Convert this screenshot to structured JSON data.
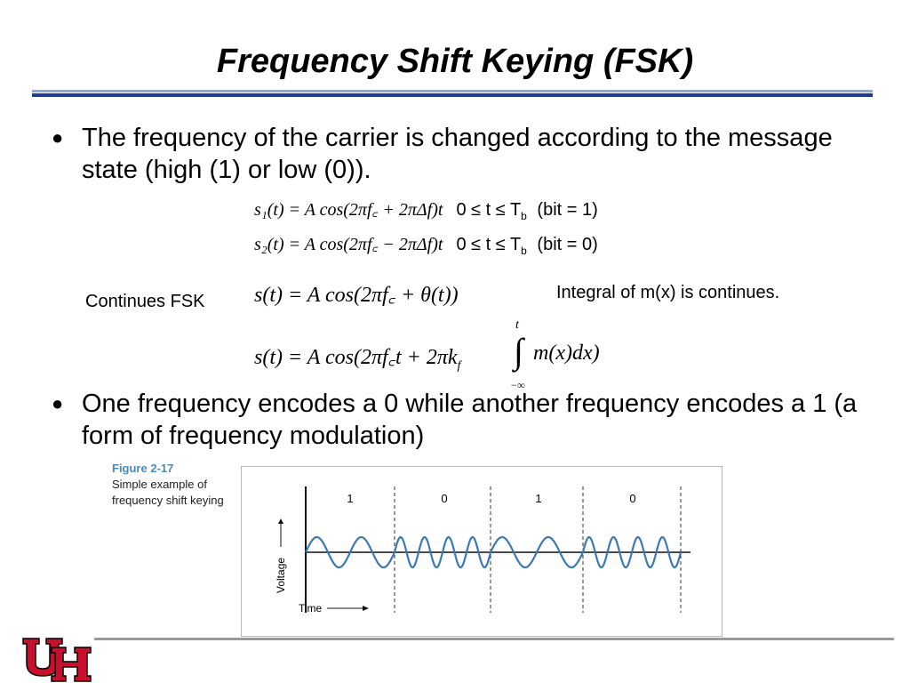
{
  "slide": {
    "title": "Frequency Shift Keying (FSK)",
    "bullets": [
      "The frequency of the carrier is changed according to the message state (high (1) or low (0)).",
      "One frequency encodes a 0 while another frequency encodes a 1 (a form of frequency modulation)"
    ],
    "bullet_symbol": "●"
  },
  "equations": {
    "s1": "s₁(t) = A cos(2πf꜀ + 2πΔf)t",
    "s1_cond": "0 ≤ t ≤ T",
    "s1_cond_sub": "b",
    "s1_bit": "(bit = 1)",
    "s2": "s₂(t) = A cos(2πf꜀ − 2πΔf)t",
    "s2_cond": "0 ≤ t ≤ T",
    "s2_cond_sub": "b",
    "s2_bit": "(bit = 0)",
    "cont1": "s(t) = A cos(2πf꜀ + θ(t))",
    "cont2_left": "s(t) = A cos(2πf꜀t + 2πk",
    "cont2_kf_sub": "f",
    "cont2_right": "m(x)dx)",
    "integral_upper": "t",
    "integral_lower": "−∞"
  },
  "labels": {
    "continues_fsk": "Continues FSK",
    "integral_note": "Integral of m(x) is continues."
  },
  "figure": {
    "number": "Figure 2-17",
    "caption": "Simple example of frequency shift keying",
    "y_label": "Voltage",
    "x_label": "Time",
    "bits": [
      "1",
      "0",
      "1",
      "0"
    ]
  },
  "colors": {
    "title_rule_dark": "#1f3a8a",
    "title_rule_light": "#8fa9d6",
    "wave": "#3b78b4",
    "logo_red": "#c8102e",
    "figure_number": "#4b8ab8"
  },
  "logo": {
    "icon": "university-of-houston-uh-logo"
  }
}
